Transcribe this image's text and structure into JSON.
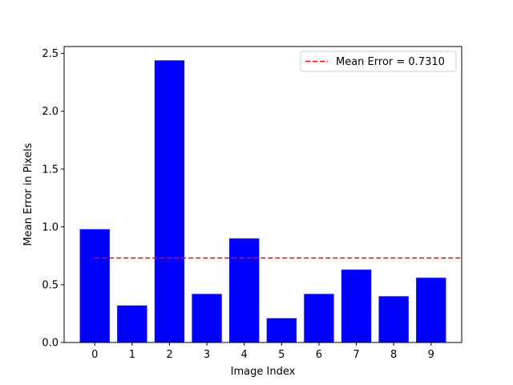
{
  "chart_data": {
    "type": "bar",
    "categories": [
      "0",
      "1",
      "2",
      "3",
      "4",
      "5",
      "6",
      "7",
      "8",
      "9"
    ],
    "values": [
      0.98,
      0.32,
      2.44,
      0.42,
      0.9,
      0.21,
      0.42,
      0.63,
      0.4,
      0.56
    ],
    "bar_color": "#0000ff",
    "xlabel": "Image Index",
    "ylabel": "Mean Error in Pixels",
    "ylim": [
      0,
      2.56
    ],
    "yticks": [
      0.0,
      0.5,
      1.0,
      1.5,
      2.0,
      2.5
    ],
    "ytick_labels": [
      "0.0",
      "0.5",
      "1.0",
      "1.5",
      "2.0",
      "2.5"
    ],
    "grid": false,
    "reference_line": {
      "value": 0.731,
      "label": "Mean Error = 0.7310",
      "color": "#ff0000",
      "style": "dashed"
    },
    "legend_position": "top-right"
  }
}
